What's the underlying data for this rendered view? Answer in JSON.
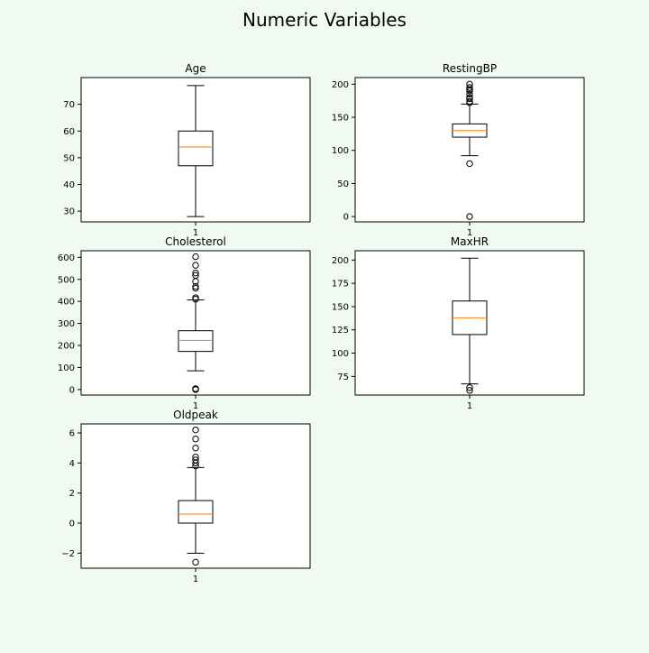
{
  "figure": {
    "title": "Numeric Variables"
  },
  "chart_data": [
    {
      "type": "boxplot",
      "title": "Age",
      "categories": [
        "1"
      ],
      "yticks": [
        30,
        40,
        50,
        60,
        70
      ],
      "ylim": [
        26,
        80
      ],
      "box": {
        "whisker_low": 28,
        "q1": 47,
        "median": 54,
        "q3": 60,
        "whisker_high": 77
      },
      "outliers": []
    },
    {
      "type": "boxplot",
      "title": "RestingBP",
      "categories": [
        "1"
      ],
      "yticks": [
        0,
        50,
        100,
        150,
        200
      ],
      "ylim": [
        -8,
        210
      ],
      "box": {
        "whisker_low": 92,
        "q1": 120,
        "median": 130,
        "q3": 140,
        "whisker_high": 170
      },
      "outliers": [
        0,
        80,
        172,
        174,
        178,
        180,
        185,
        190,
        192,
        195,
        200
      ]
    },
    {
      "type": "boxplot",
      "title": "Cholesterol",
      "categories": [
        "1"
      ],
      "yticks": [
        0,
        100,
        200,
        300,
        400,
        500,
        600
      ],
      "ylim": [
        -25,
        630
      ],
      "box": {
        "whisker_low": 85,
        "q1": 173,
        "median": 223,
        "q3": 267,
        "whisker_high": 407
      },
      "outliers": [
        0,
        2,
        4,
        410,
        417,
        460,
        468,
        491,
        518,
        529,
        564,
        603
      ]
    },
    {
      "type": "boxplot",
      "title": "MaxHR",
      "categories": [
        "1"
      ],
      "yticks": [
        75,
        100,
        125,
        150,
        175,
        200
      ],
      "ylim": [
        55,
        210
      ],
      "box": {
        "whisker_low": 67,
        "q1": 120,
        "median": 138,
        "q3": 156,
        "whisker_high": 202
      },
      "outliers": [
        60,
        63
      ]
    },
    {
      "type": "boxplot",
      "title": "Oldpeak",
      "categories": [
        "1"
      ],
      "yticks": [
        -2,
        0,
        2,
        4,
        6
      ],
      "ylim": [
        -3,
        6.6
      ],
      "box": {
        "whisker_low": -2,
        "q1": 0,
        "median": 0.6,
        "q3": 1.5,
        "whisker_high": 3.7
      },
      "outliers": [
        -2.6,
        3.8,
        4.0,
        4.2,
        4.4,
        5.0,
        5.6,
        6.2
      ]
    }
  ]
}
